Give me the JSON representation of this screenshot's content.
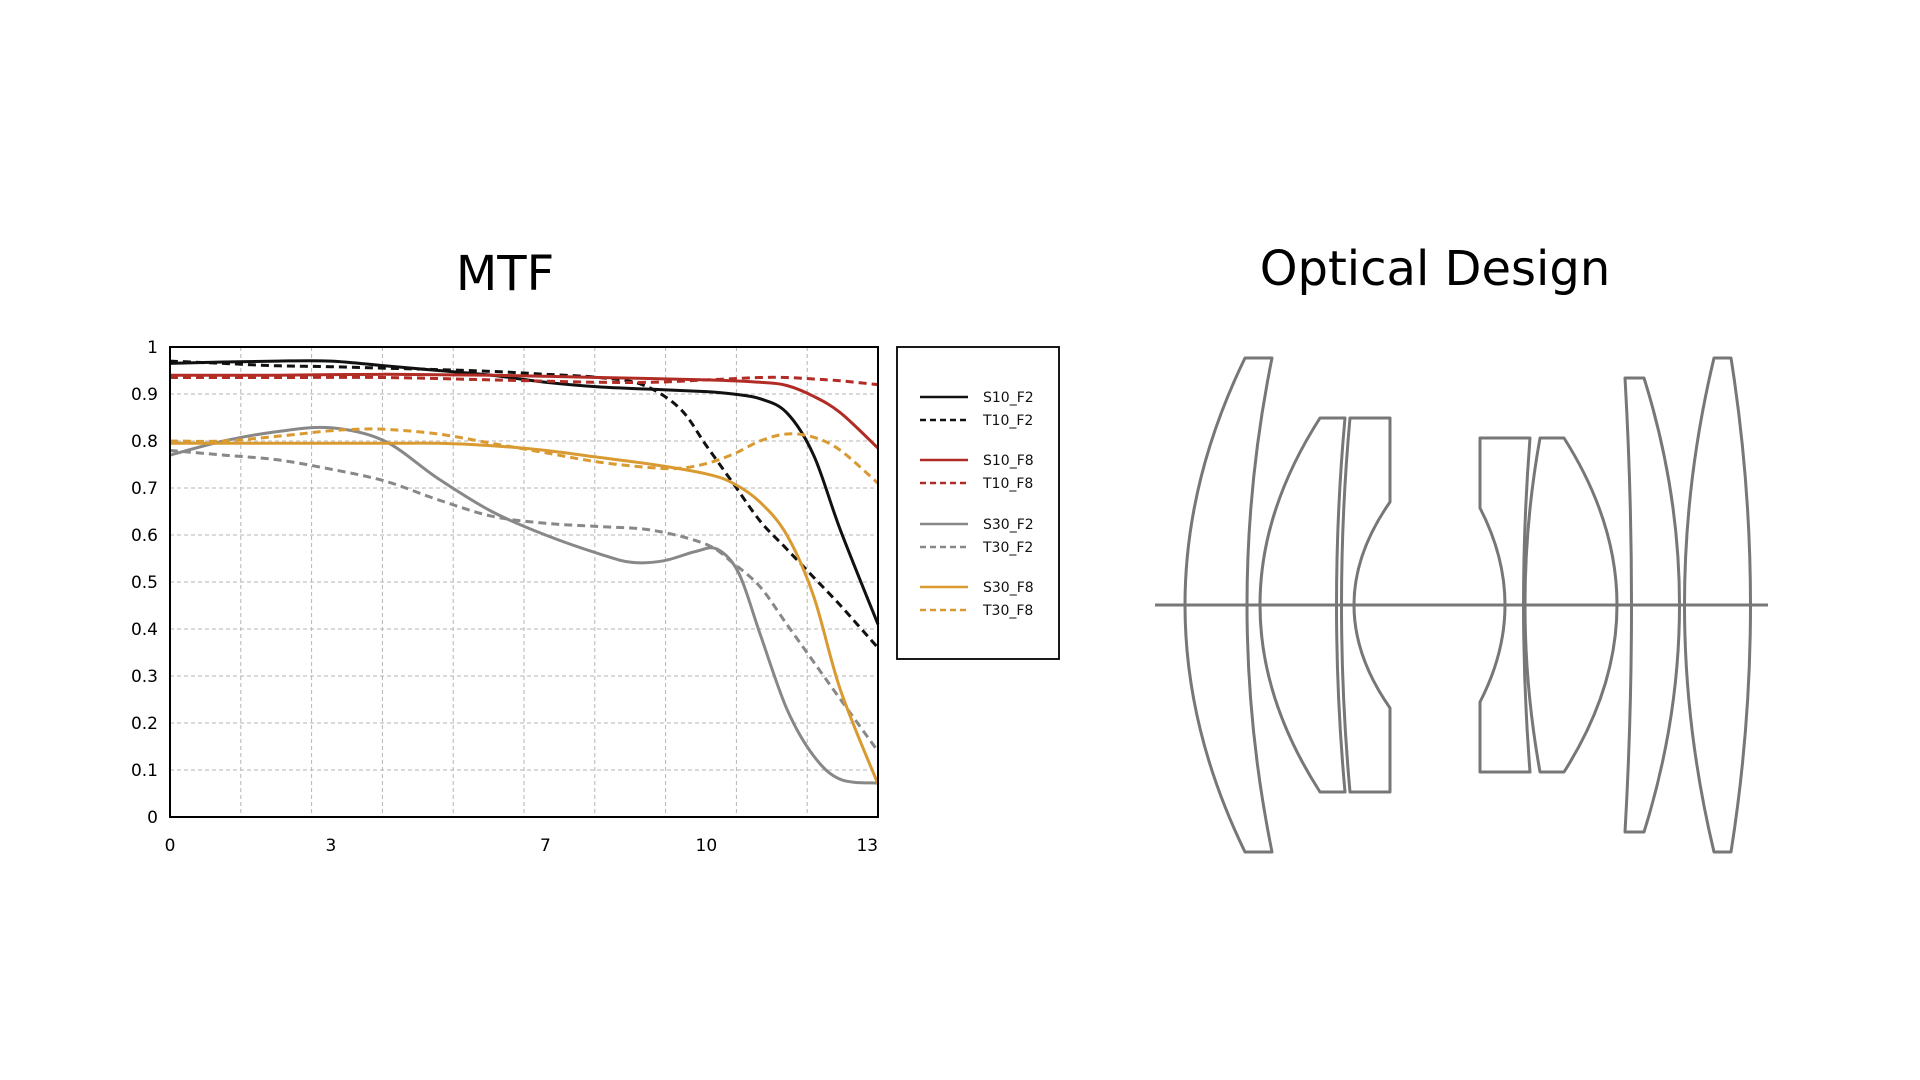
{
  "headings": {
    "mtf": "MTF",
    "optical": "Optical Design"
  },
  "chart_data": {
    "type": "line",
    "title": "MTF",
    "xlabel": "",
    "ylabel": "",
    "xlim": [
      0,
      13.2
    ],
    "ylim": [
      0,
      1
    ],
    "x_ticks": [
      0,
      3,
      7,
      10,
      13
    ],
    "y_ticks": [
      0,
      0.1,
      0.2,
      0.3,
      0.4,
      0.5,
      0.6,
      0.7,
      0.8,
      0.9,
      1
    ],
    "y_tick_labels": [
      "0",
      "0.1",
      "0.2",
      "0.3",
      "0.4",
      "0.5",
      "0.6",
      "0.7",
      "0.8",
      "0.9",
      "1"
    ],
    "grid": true,
    "legend_position": "right",
    "series": [
      {
        "name": "S10_F2",
        "color": "#111111",
        "dash": false,
        "x": [
          0,
          1,
          2,
          3,
          4,
          5,
          6,
          7,
          8,
          9,
          10,
          10.5,
          11,
          11.5,
          12,
          12.5,
          13.2
        ],
        "y": [
          0.965,
          0.968,
          0.97,
          0.97,
          0.96,
          0.95,
          0.94,
          0.925,
          0.915,
          0.91,
          0.905,
          0.9,
          0.89,
          0.86,
          0.77,
          0.61,
          0.41
        ]
      },
      {
        "name": "T10_F2",
        "color": "#111111",
        "dash": true,
        "x": [
          0,
          1,
          2,
          3,
          4,
          5,
          6,
          7,
          8,
          8.8,
          9.5,
          10,
          10.5,
          11,
          11.5,
          12,
          12.5,
          13.2
        ],
        "y": [
          0.97,
          0.965,
          0.96,
          0.958,
          0.955,
          0.952,
          0.948,
          0.942,
          0.935,
          0.92,
          0.87,
          0.79,
          0.71,
          0.63,
          0.57,
          0.51,
          0.45,
          0.36
        ]
      },
      {
        "name": "S10_F8",
        "color": "#b22c26",
        "dash": false,
        "x": [
          0,
          2,
          4,
          6,
          8,
          10,
          11,
          11.5,
          12,
          12.5,
          13.2
        ],
        "y": [
          0.94,
          0.94,
          0.942,
          0.94,
          0.935,
          0.93,
          0.925,
          0.918,
          0.895,
          0.86,
          0.785
        ]
      },
      {
        "name": "T10_F8",
        "color": "#b22c26",
        "dash": true,
        "x": [
          0,
          2,
          4,
          6,
          8,
          9,
          10,
          11,
          11.5,
          12,
          12.5,
          13.2
        ],
        "y": [
          0.935,
          0.935,
          0.935,
          0.93,
          0.925,
          0.925,
          0.93,
          0.935,
          0.935,
          0.932,
          0.928,
          0.92
        ]
      },
      {
        "name": "S30_F2",
        "color": "#888888",
        "dash": false,
        "x": [
          0,
          1,
          2,
          3,
          4,
          5,
          6,
          7,
          8,
          8.6,
          9.2,
          9.8,
          10.2,
          10.6,
          11,
          11.5,
          12,
          12.5,
          13.2
        ],
        "y": [
          0.77,
          0.8,
          0.82,
          0.828,
          0.8,
          0.72,
          0.65,
          0.6,
          0.56,
          0.542,
          0.545,
          0.565,
          0.57,
          0.52,
          0.39,
          0.23,
          0.13,
          0.08,
          0.072
        ]
      },
      {
        "name": "T30_F2",
        "color": "#888888",
        "dash": true,
        "x": [
          0,
          1,
          2,
          3,
          4,
          5,
          6,
          7,
          8,
          9,
          10,
          10.5,
          11,
          11.5,
          12,
          12.5,
          13.2
        ],
        "y": [
          0.78,
          0.77,
          0.76,
          0.74,
          0.715,
          0.675,
          0.64,
          0.625,
          0.618,
          0.61,
          0.58,
          0.54,
          0.49,
          0.41,
          0.33,
          0.25,
          0.14
        ]
      },
      {
        "name": "S30_F8",
        "color": "#d99a32",
        "dash": false,
        "x": [
          0,
          2,
          4,
          5,
          6,
          7,
          8,
          9,
          10,
          10.5,
          11,
          11.5,
          12,
          12.5,
          13.2
        ],
        "y": [
          0.795,
          0.795,
          0.795,
          0.795,
          0.79,
          0.78,
          0.765,
          0.75,
          0.73,
          0.71,
          0.67,
          0.6,
          0.47,
          0.27,
          0.07
        ]
      },
      {
        "name": "T30_F8",
        "color": "#d99a32",
        "dash": true,
        "x": [
          0,
          1,
          2,
          3,
          3.5,
          4,
          5,
          6,
          7,
          8,
          9,
          9.5,
          10,
          10.5,
          11,
          11.5,
          12,
          12.5,
          13.2
        ],
        "y": [
          0.8,
          0.8,
          0.81,
          0.822,
          0.825,
          0.825,
          0.815,
          0.795,
          0.775,
          0.755,
          0.743,
          0.742,
          0.752,
          0.772,
          0.8,
          0.815,
          0.808,
          0.78,
          0.71
        ]
      }
    ]
  },
  "optical_design": {
    "stroke_color": "#777777",
    "elements": [
      "lens-element-1",
      "lens-element-2",
      "lens-element-3",
      "lens-element-4",
      "lens-element-5",
      "lens-element-6",
      "lens-element-7"
    ]
  }
}
